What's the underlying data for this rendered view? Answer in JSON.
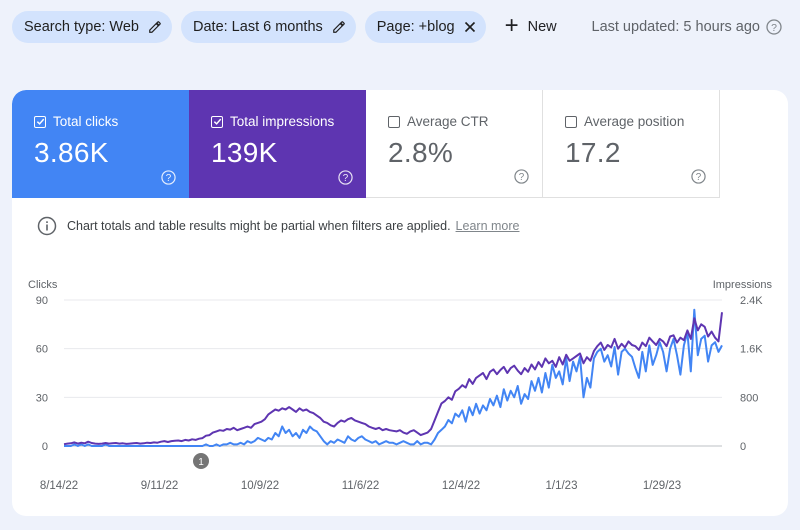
{
  "filters": {
    "chips": [
      {
        "label": "Search type: Web",
        "icon": "pencil-icon"
      },
      {
        "label": "Date: Last 6 months",
        "icon": "pencil-icon"
      },
      {
        "label": "Page: +blog",
        "icon": "close-icon"
      }
    ],
    "new_label": "New",
    "updated": "Last updated: 5 hours ago"
  },
  "metrics": {
    "clicks": {
      "label": "Total clicks",
      "value": "3.86K",
      "checked": true
    },
    "impressions": {
      "label": "Total impressions",
      "value": "139K",
      "checked": true
    },
    "ctr": {
      "label": "Average CTR",
      "value": "2.8%",
      "checked": false
    },
    "position": {
      "label": "Average position",
      "value": "17.2",
      "checked": false
    }
  },
  "notice": {
    "text": "Chart totals and table results might be partial when filters are applied.",
    "link": "Learn more"
  },
  "colors": {
    "clicks": "#4285f4",
    "impressions": "#5e35b1",
    "grid": "#e8eaed"
  },
  "chart_data": {
    "type": "line",
    "left_axis_label": "Clicks",
    "right_axis_label": "Impressions",
    "left_ticks": [
      0,
      30,
      60,
      90
    ],
    "right_ticks": [
      "0",
      "800",
      "1.6K",
      "2.4K"
    ],
    "ylim_left": [
      0,
      90
    ],
    "ylim_right": [
      0,
      2400
    ],
    "x_ticks": [
      "8/14/22",
      "9/11/22",
      "10/9/22",
      "11/6/22",
      "12/4/22",
      "1/1/23",
      "1/29/23"
    ],
    "annotation": "1",
    "series": [
      {
        "name": "Clicks",
        "axis": "left",
        "values": [
          0,
          0,
          0,
          1,
          0,
          1,
          0,
          1,
          0,
          0,
          0,
          0,
          1,
          0,
          0,
          0,
          0,
          0,
          0,
          0,
          0,
          0,
          0,
          0,
          0,
          0,
          0,
          0,
          0,
          0,
          0,
          0,
          0,
          0,
          0,
          0,
          0,
          0,
          0,
          0,
          0,
          1,
          0,
          0,
          1,
          0,
          1,
          1,
          2,
          1,
          1,
          2,
          1,
          3,
          2,
          3,
          5,
          4,
          3,
          5,
          4,
          8,
          6,
          12,
          8,
          10,
          6,
          8,
          5,
          10,
          8,
          12,
          10,
          9,
          6,
          3,
          1,
          3,
          2,
          4,
          3,
          2,
          6,
          4,
          3,
          5,
          6,
          4,
          3,
          2,
          3,
          1,
          2,
          3,
          2,
          2,
          1,
          2,
          3,
          2,
          1,
          1,
          3,
          1,
          2,
          2,
          1,
          4,
          8,
          10,
          12,
          16,
          14,
          20,
          18,
          22,
          15,
          24,
          19,
          26,
          20,
          25,
          22,
          29,
          25,
          31,
          24,
          35,
          28,
          34,
          30,
          37,
          26,
          32,
          29,
          40,
          34,
          42,
          33,
          45,
          36,
          50,
          42,
          46,
          38,
          54,
          40,
          52,
          46,
          55,
          30,
          42,
          36,
          54,
          58,
          60,
          52,
          56,
          49,
          61,
          44,
          58,
          60,
          57,
          55,
          48,
          42,
          58,
          46,
          62,
          50,
          56,
          64,
          58,
          46,
          60,
          66,
          56,
          44,
          62,
          70,
          46,
          84,
          56,
          66,
          68,
          52,
          62,
          64,
          58,
          62
        ]
      },
      {
        "name": "Impressions",
        "axis": "right",
        "values": [
          30,
          40,
          45,
          60,
          40,
          55,
          45,
          70,
          50,
          40,
          35,
          40,
          50,
          40,
          45,
          50,
          40,
          45,
          35,
          40,
          45,
          50,
          40,
          45,
          55,
          50,
          60,
          55,
          70,
          80,
          65,
          80,
          85,
          90,
          80,
          100,
          90,
          110,
          100,
          120,
          130,
          170,
          180,
          220,
          240,
          260,
          250,
          280,
          270,
          300,
          260,
          280,
          300,
          320,
          300,
          360,
          380,
          400,
          440,
          520,
          560,
          600,
          580,
          620,
          600,
          640,
          600,
          560,
          620,
          580,
          600,
          560,
          540,
          500,
          460,
          400,
          380,
          340,
          320,
          380,
          420,
          400,
          440,
          460,
          420,
          400,
          380,
          360,
          320,
          300,
          280,
          300,
          260,
          280,
          260,
          250,
          240,
          260,
          220,
          200,
          240,
          260,
          220,
          180,
          200,
          220,
          280,
          420,
          560,
          700,
          740,
          800,
          760,
          900,
          940,
          1000,
          960,
          1100,
          1020,
          1120,
          1160,
          1200,
          1100,
          1220,
          1260,
          1180,
          1250,
          1300,
          1200,
          1280,
          1320,
          1240,
          1180,
          1280,
          1220,
          1340,
          1260,
          1380,
          1300,
          1440,
          1360,
          1400,
          1300,
          1460,
          1340,
          1500,
          1400,
          1440,
          1480,
          1520,
          1360,
          1460,
          1400,
          1560,
          1640,
          1700,
          1580,
          1660,
          1620,
          1760,
          1600,
          1680,
          1620,
          1720,
          1660,
          1640,
          1580,
          1700,
          1640,
          1780,
          1720,
          1660,
          1760,
          1720,
          1640,
          1800,
          1820,
          1700,
          1780,
          1740,
          1900,
          1760,
          2100,
          1900,
          2000,
          1960,
          1800,
          1880,
          1780,
          1720,
          2200
        ]
      }
    ]
  }
}
